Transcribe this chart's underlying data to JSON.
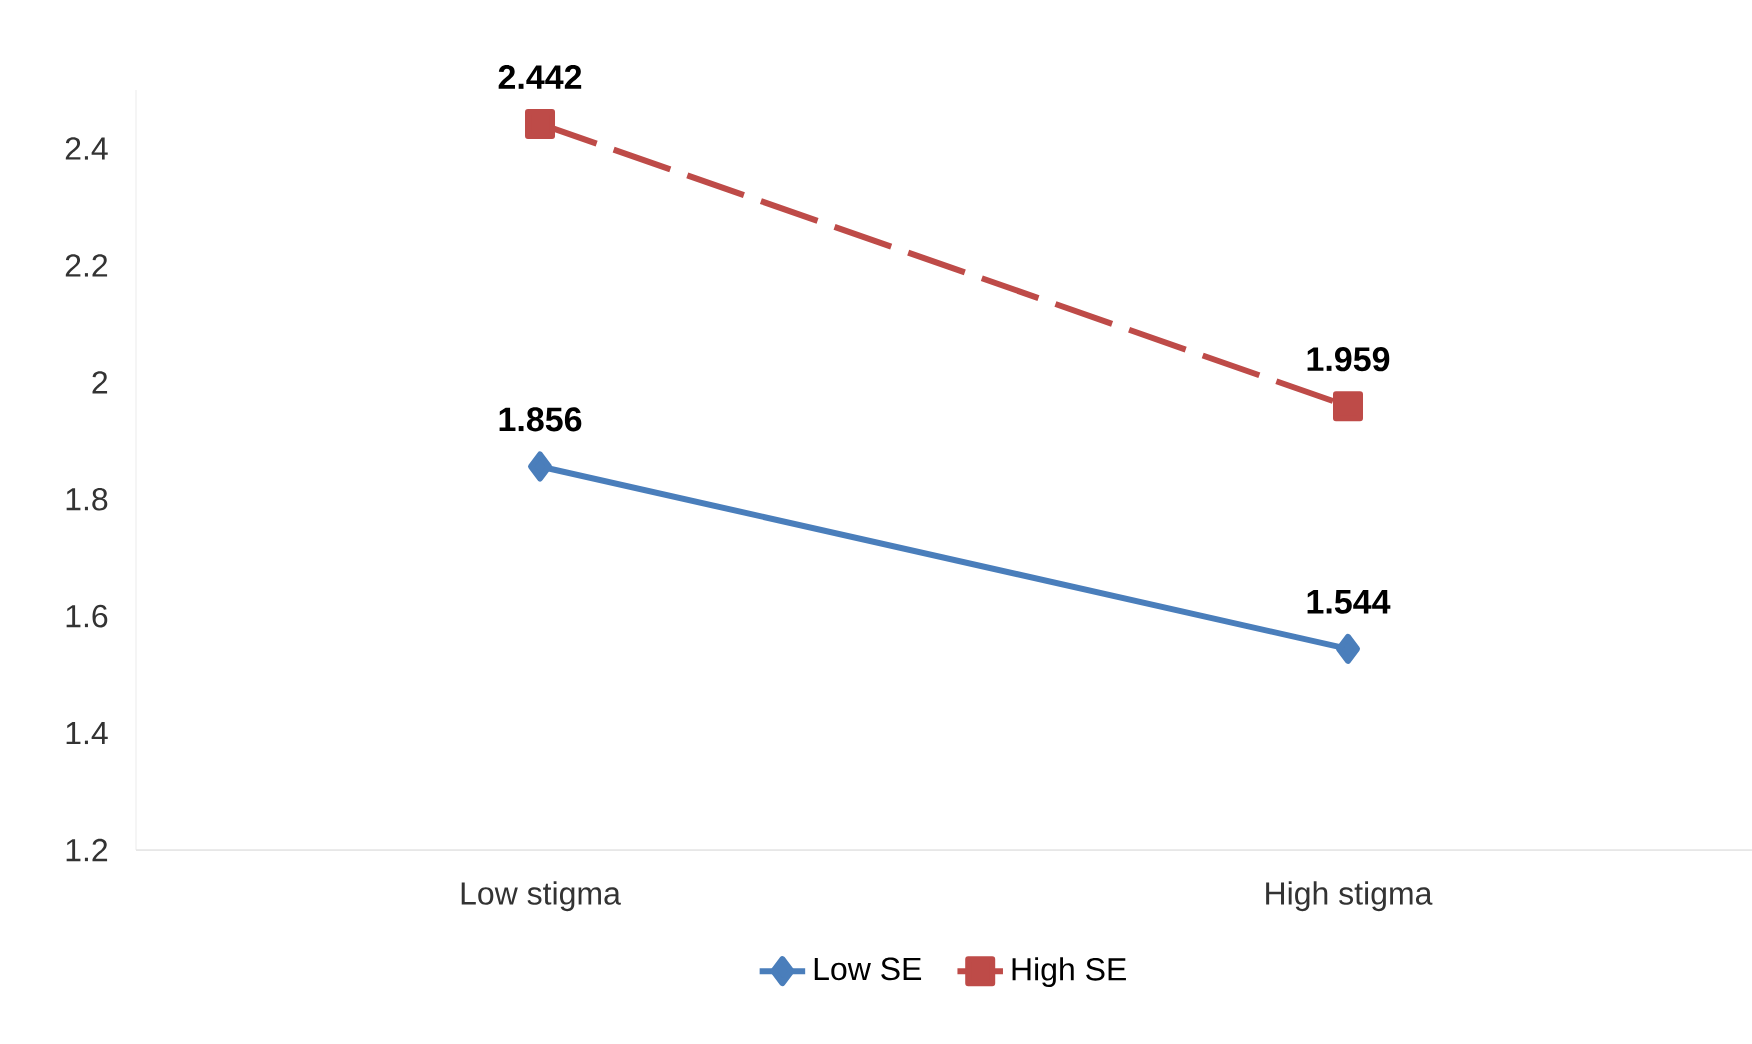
{
  "chart_data": {
    "type": "line",
    "categories": [
      "Low stigma",
      "High stigma"
    ],
    "series": [
      {
        "name": "Low SE",
        "color": "#4a7ebb",
        "values": [
          1.856,
          1.544
        ],
        "marker": "diamond",
        "line_style": "solid"
      },
      {
        "name": "High SE",
        "color": "#be4b48",
        "values": [
          2.442,
          1.959
        ],
        "marker": "square",
        "line_style": "dashed"
      }
    ],
    "ylim": [
      1.2,
      2.5
    ],
    "yticks": [
      1.2,
      1.4,
      1.6,
      1.8,
      2,
      2.2,
      2.4
    ],
    "grid": false,
    "legend": "bottom",
    "data_labels": true
  }
}
